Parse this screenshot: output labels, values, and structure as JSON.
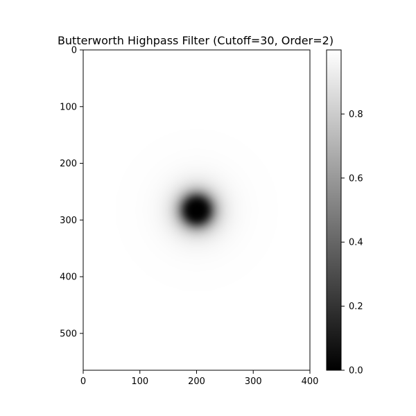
{
  "chart_data": {
    "type": "heatmap",
    "title": "Butterworth Highpass Filter (Cutoff=30, Order=2)",
    "xlabel": "",
    "ylabel": "",
    "width": 400,
    "height": 565,
    "xlim": [
      0,
      400
    ],
    "ylim": [
      565,
      0
    ],
    "x_ticks": [
      0,
      100,
      200,
      300,
      400
    ],
    "y_ticks": [
      0,
      100,
      200,
      300,
      400,
      500
    ],
    "center": [
      200,
      282
    ],
    "cutoff": 30,
    "order": 2,
    "colormap": "gray",
    "colorbar": {
      "range": [
        0,
        1
      ],
      "ticks": [
        0.0,
        0.2,
        0.4,
        0.6,
        0.8
      ],
      "tick_labels": [
        "0.0",
        "0.2",
        "0.4",
        "0.6",
        "0.8"
      ]
    },
    "grid": false
  }
}
